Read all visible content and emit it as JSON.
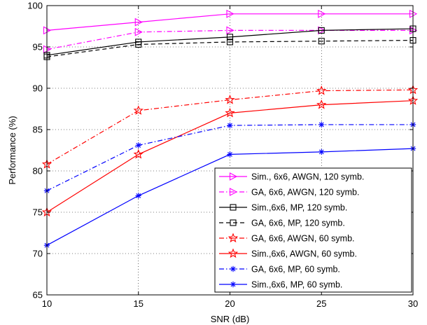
{
  "chart_data": {
    "type": "line",
    "title": "",
    "xlabel": "SNR (dB)",
    "ylabel": "Performance (%)",
    "xlim": [
      10,
      30
    ],
    "ylim": [
      65,
      100
    ],
    "xticks": [
      10,
      15,
      20,
      25,
      30
    ],
    "yticks": [
      65,
      70,
      75,
      80,
      85,
      90,
      95,
      100
    ],
    "grid": true,
    "legend_position": "bottom-right",
    "x": [
      10,
      15,
      20,
      25,
      30
    ],
    "series": [
      {
        "name": "Sim., 6x6, AWGN, 120 symb.",
        "values": [
          97.0,
          98.0,
          99.0,
          99.0,
          99.0
        ],
        "color": "#ff00ff",
        "dash": "solid",
        "marker": "triangle-right"
      },
      {
        "name": "GA, 6x6, AWGN, 120 symb.",
        "values": [
          94.7,
          96.8,
          97.0,
          97.0,
          97.0
        ],
        "color": "#ff00ff",
        "dash": "dashdot",
        "marker": "triangle-right"
      },
      {
        "name": "Sim.,6x6, MP, 120 symb.",
        "values": [
          94.0,
          95.6,
          96.2,
          97.0,
          97.2
        ],
        "color": "#000000",
        "dash": "solid",
        "marker": "square"
      },
      {
        "name": "GA, 6x6, MP, 120 symb.",
        "values": [
          93.8,
          95.3,
          95.6,
          95.7,
          95.8
        ],
        "color": "#000000",
        "dash": "dashed",
        "marker": "square"
      },
      {
        "name": "GA, 6x6, AWGN, 60 symb.",
        "values": [
          80.8,
          87.3,
          88.6,
          89.7,
          89.8
        ],
        "color": "#ff0000",
        "dash": "dashdot",
        "marker": "star"
      },
      {
        "name": "Sim.,6x6, AWGN, 60 symb.",
        "values": [
          75.0,
          82.0,
          87.0,
          88.0,
          88.5
        ],
        "color": "#ff0000",
        "dash": "solid",
        "marker": "star"
      },
      {
        "name": "GA, 6x6, MP, 60 symb.",
        "values": [
          77.6,
          83.1,
          85.5,
          85.6,
          85.6
        ],
        "color": "#0000ff",
        "dash": "dashdot",
        "marker": "asterisk"
      },
      {
        "name": "Sim.,6x6, MP, 60 symb.",
        "values": [
          71.0,
          77.0,
          82.0,
          82.3,
          82.7
        ],
        "color": "#0000ff",
        "dash": "solid",
        "marker": "asterisk"
      }
    ]
  }
}
